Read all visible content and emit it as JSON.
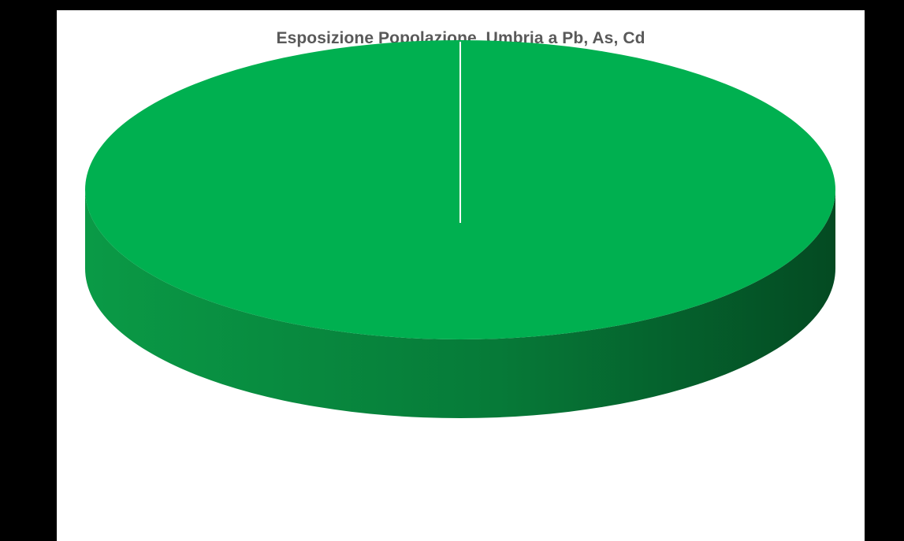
{
  "chart_data": {
    "type": "pie",
    "title": "Esposizione Popolazione  Umbria a Pb, As, Cd",
    "style": "3d",
    "series": [
      {
        "values": [
          100
        ]
      }
    ],
    "colors": {
      "top": "#00b050",
      "side_light": "#0a9a46",
      "side_dark": "#044a22",
      "slice_separator": "#ffffff"
    },
    "legend": "none"
  }
}
